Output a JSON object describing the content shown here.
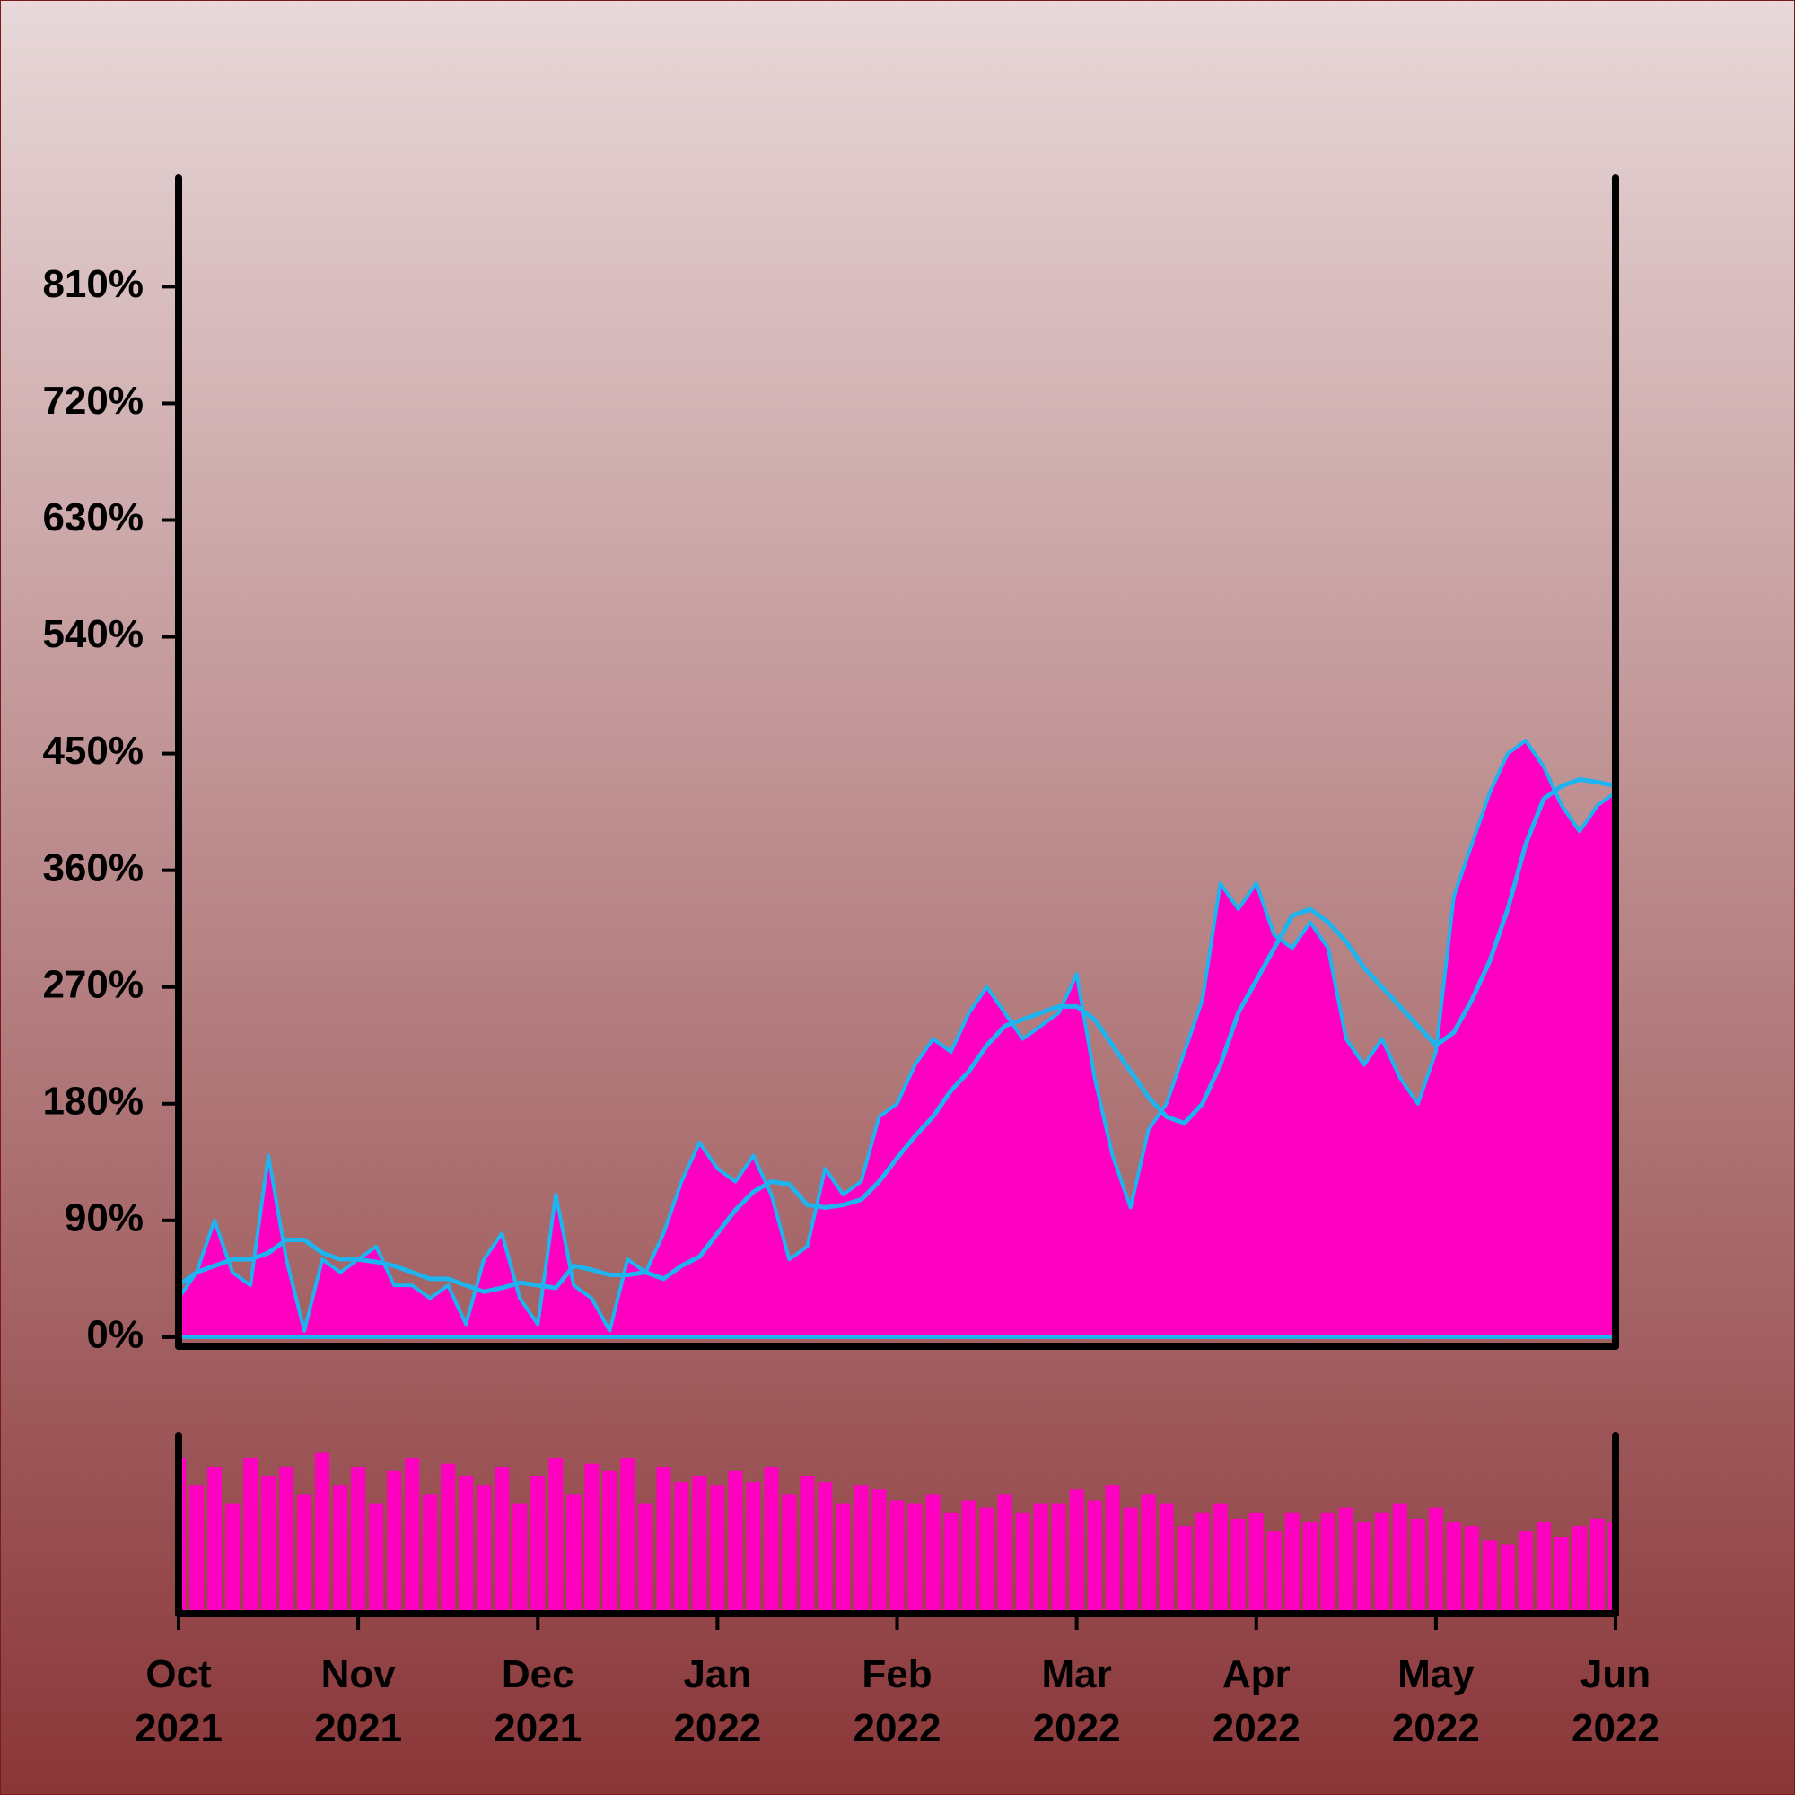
{
  "chart_data": {
    "type": "area",
    "x": [
      0,
      0.1,
      0.2,
      0.3,
      0.4,
      0.5,
      0.6,
      0.7,
      0.8,
      0.9,
      1,
      1.1,
      1.2,
      1.3,
      1.4,
      1.5,
      1.6,
      1.7,
      1.8,
      1.9,
      2,
      2.1,
      2.2,
      2.3,
      2.4,
      2.5,
      2.6,
      2.7,
      2.8,
      2.9,
      3,
      3.1,
      3.2,
      3.3,
      3.4,
      3.5,
      3.6,
      3.7,
      3.8,
      3.9,
      4,
      4.1,
      4.2,
      4.3,
      4.4,
      4.5,
      4.6,
      4.7,
      4.8,
      4.9,
      5,
      5.1,
      5.2,
      5.3,
      5.4,
      5.5,
      5.6,
      5.7,
      5.8,
      5.9,
      6,
      6.1,
      6.2,
      6.3,
      6.4,
      6.5,
      6.6,
      6.7,
      6.8,
      6.9,
      7,
      7.1,
      7.2,
      7.3,
      7.4,
      7.5,
      7.6,
      7.7,
      7.8,
      7.9,
      8
    ],
    "series": [
      {
        "type": "area",
        "color": "#ff00c0",
        "values": [
          30,
          50,
          90,
          50,
          40,
          140,
          60,
          5,
          60,
          50,
          60,
          70,
          40,
          40,
          30,
          40,
          10,
          60,
          80,
          30,
          10,
          110,
          40,
          30,
          5,
          60,
          50,
          80,
          120,
          150,
          130,
          120,
          140,
          110,
          60,
          70,
          130,
          110,
          120,
          170,
          180,
          210,
          230,
          220,
          250,
          270,
          250,
          230,
          240,
          250,
          280,
          200,
          140,
          100,
          160,
          180,
          220,
          260,
          350,
          330,
          350,
          310,
          300,
          320,
          300,
          230,
          210,
          230,
          200,
          180,
          220,
          340,
          380,
          420,
          450,
          460,
          440,
          410,
          390,
          410,
          420
        ]
      },
      {
        "type": "line",
        "color": "#1eb4f0",
        "values": [
          40,
          50,
          55,
          60,
          60,
          65,
          75,
          75,
          65,
          60,
          60,
          58,
          55,
          50,
          45,
          45,
          40,
          35,
          38,
          42,
          40,
          38,
          55,
          52,
          48,
          48,
          50,
          45,
          55,
          62,
          80,
          98,
          112,
          120,
          118,
          102,
          100,
          102,
          106,
          120,
          138,
          155,
          170,
          190,
          205,
          225,
          240,
          245,
          250,
          255,
          255,
          245,
          225,
          205,
          185,
          170,
          165,
          180,
          210,
          250,
          275,
          300,
          325,
          330,
          320,
          305,
          285,
          270,
          255,
          240,
          225,
          235,
          260,
          290,
          330,
          380,
          415,
          425,
          430,
          428,
          425
        ]
      },
      {
        "type": "bar",
        "axis": "y2",
        "color": "#ff00c0",
        "values": [
          85,
          70,
          80,
          60,
          85,
          75,
          80,
          65,
          88,
          70,
          80,
          60,
          78,
          85,
          65,
          82,
          75,
          70,
          80,
          60,
          75,
          85,
          65,
          82,
          78,
          85,
          60,
          80,
          72,
          75,
          70,
          78,
          72,
          80,
          65,
          75,
          72,
          60,
          70,
          68,
          62,
          60,
          65,
          55,
          62,
          58,
          65,
          55,
          60,
          60,
          68,
          62,
          70,
          58,
          65,
          60,
          48,
          55,
          60,
          52,
          55,
          45,
          55,
          50,
          55,
          58,
          50,
          55,
          60,
          52,
          58,
          50,
          48,
          40,
          38,
          45,
          50,
          42,
          48,
          52,
          50
        ]
      }
    ],
    "xlim": [
      0,
      8
    ],
    "xticks": [
      {
        "value": 0,
        "label": "Oct\n2021"
      },
      {
        "value": 1,
        "label": "Nov\n2021"
      },
      {
        "value": 2,
        "label": "Dec\n2021"
      },
      {
        "value": 3,
        "label": "Jan\n2022"
      },
      {
        "value": 4,
        "label": "Feb\n2022"
      },
      {
        "value": 5,
        "label": "Mar\n2022"
      },
      {
        "value": 6,
        "label": "Apr\n2022"
      },
      {
        "value": 7,
        "label": "May\n2022"
      },
      {
        "value": 8,
        "label": "Jun\n2022"
      }
    ],
    "ylim": [
      -7,
      894
    ],
    "yticks": [
      {
        "value": 0,
        "label": "0%"
      },
      {
        "value": 90,
        "label": "90%"
      },
      {
        "value": 180,
        "label": "180%"
      },
      {
        "value": 270,
        "label": "270%"
      },
      {
        "value": 360,
        "label": "360%"
      },
      {
        "value": 450,
        "label": "450%"
      },
      {
        "value": 540,
        "label": "540%"
      },
      {
        "value": 630,
        "label": "630%"
      },
      {
        "value": 720,
        "label": "720%"
      },
      {
        "value": 810,
        "label": "810%"
      }
    ],
    "y2lim": [
      0,
      100
    ]
  }
}
